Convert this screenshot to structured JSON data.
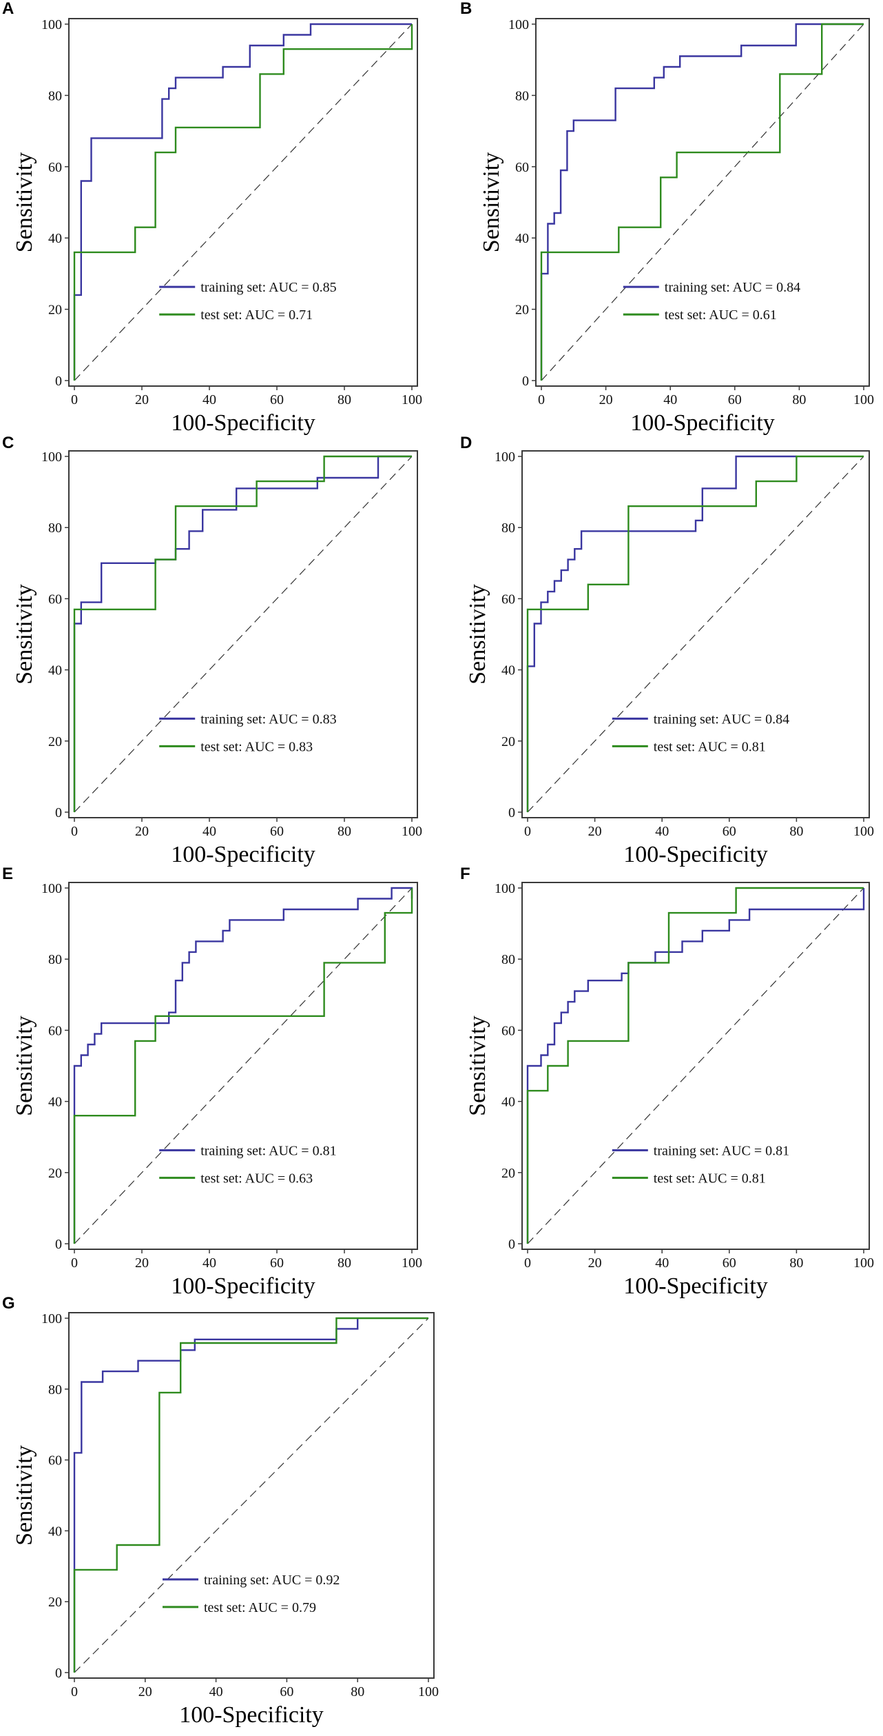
{
  "figure": {
    "axis_labels": {
      "x": "100-Specificity",
      "y": "Sensitivity"
    },
    "tick_values": [
      0,
      20,
      40,
      60,
      80,
      100
    ],
    "colors": {
      "training": "#3a36a0",
      "test": "#2e8b1e",
      "diagonal": "#333333",
      "frame": "#3a3a3a"
    }
  },
  "chart_data": [
    {
      "panel": "A",
      "type": "line",
      "xlabel": "100-Specificity",
      "ylabel": "Sensitivity",
      "xlim": [
        0,
        100
      ],
      "ylim": [
        0,
        100
      ],
      "reference_line": [
        [
          0,
          0
        ],
        [
          100,
          100
        ]
      ],
      "series": [
        {
          "name": "training set: AUC = 0.85",
          "label": "training set: AUC = 0.85",
          "x": [
            0,
            0,
            2,
            2,
            5,
            5,
            26,
            26,
            28,
            28,
            30,
            30,
            44,
            44,
            52,
            52,
            62,
            62,
            70,
            70,
            100
          ],
          "y": [
            0,
            24,
            24,
            56,
            56,
            68,
            68,
            79,
            79,
            82,
            82,
            85,
            85,
            88,
            88,
            94,
            94,
            97,
            97,
            100,
            100
          ]
        },
        {
          "name": "test set: AUC = 0.71",
          "label": "test set: AUC = 0.71",
          "x": [
            0,
            0,
            18,
            18,
            24,
            24,
            30,
            30,
            55,
            55,
            62,
            62,
            100,
            100
          ],
          "y": [
            0,
            36,
            36,
            43,
            43,
            64,
            64,
            71,
            71,
            86,
            86,
            93,
            93,
            100
          ]
        }
      ]
    },
    {
      "panel": "B",
      "type": "line",
      "xlabel": "100-Specificity",
      "ylabel": "Sensitivity",
      "xlim": [
        0,
        100
      ],
      "ylim": [
        0,
        100
      ],
      "reference_line": [
        [
          0,
          0
        ],
        [
          100,
          100
        ]
      ],
      "series": [
        {
          "name": "training set: AUC = 0.84",
          "label": "training set: AUC = 0.84",
          "x": [
            0,
            0,
            2,
            2,
            4,
            4,
            6,
            6,
            8,
            8,
            10,
            10,
            23,
            23,
            35,
            35,
            38,
            38,
            43,
            43,
            62,
            62,
            79,
            79,
            100
          ],
          "y": [
            0,
            30,
            30,
            44,
            44,
            47,
            47,
            59,
            59,
            70,
            70,
            73,
            73,
            82,
            82,
            85,
            85,
            88,
            88,
            91,
            91,
            94,
            94,
            100,
            100
          ]
        },
        {
          "name": "test set: AUC = 0.61",
          "label": "test set: AUC = 0.61",
          "x": [
            0,
            0,
            24,
            24,
            37,
            37,
            42,
            42,
            74,
            74,
            87,
            87,
            100
          ],
          "y": [
            0,
            36,
            36,
            43,
            43,
            57,
            57,
            64,
            64,
            86,
            86,
            100,
            100
          ]
        }
      ]
    },
    {
      "panel": "C",
      "type": "line",
      "xlabel": "100-Specificity",
      "ylabel": "Sensitivity",
      "xlim": [
        0,
        100
      ],
      "ylim": [
        0,
        100
      ],
      "reference_line": [
        [
          0,
          0
        ],
        [
          100,
          100
        ]
      ],
      "series": [
        {
          "name": "training set: AUC = 0.83",
          "label": "training set: AUC = 0.83",
          "x": [
            0,
            0,
            2,
            2,
            8,
            8,
            24,
            24,
            30,
            30,
            34,
            34,
            38,
            38,
            48,
            48,
            52,
            52,
            72,
            72,
            90,
            90,
            100
          ],
          "y": [
            0,
            53,
            53,
            59,
            59,
            70,
            70,
            71,
            71,
            74,
            74,
            79,
            79,
            85,
            85,
            91,
            91,
            91,
            91,
            94,
            94,
            100,
            100
          ]
        },
        {
          "name": "test set: AUC = 0.83",
          "label": "test set: AUC = 0.83",
          "x": [
            0,
            0,
            24,
            24,
            30,
            30,
            46,
            46,
            54,
            54,
            74,
            74,
            100
          ],
          "y": [
            0,
            57,
            57,
            71,
            71,
            86,
            86,
            86,
            86,
            93,
            93,
            100,
            100
          ]
        }
      ]
    },
    {
      "panel": "D",
      "type": "line",
      "xlabel": "100-Specificity",
      "ylabel": "Sensitivity",
      "xlim": [
        0,
        100
      ],
      "ylim": [
        0,
        100
      ],
      "reference_line": [
        [
          0,
          0
        ],
        [
          100,
          100
        ]
      ],
      "series": [
        {
          "name": "training set: AUC = 0.84",
          "label": "training set: AUC = 0.84",
          "x": [
            0,
            0,
            2,
            2,
            4,
            4,
            6,
            6,
            8,
            8,
            10,
            10,
            12,
            12,
            14,
            14,
            16,
            16,
            22,
            22,
            50,
            50,
            52,
            52,
            62,
            62,
            80,
            80
          ],
          "y": [
            0,
            41,
            41,
            53,
            53,
            59,
            59,
            62,
            62,
            65,
            65,
            68,
            68,
            71,
            71,
            74,
            74,
            79,
            79,
            79,
            79,
            82,
            82,
            91,
            91,
            100,
            100,
            100
          ]
        },
        {
          "name": "test set: AUC = 0.81",
          "label": "test set: AUC = 0.81",
          "x": [
            0,
            0,
            18,
            18,
            30,
            30,
            60,
            60,
            68,
            68,
            80,
            80,
            100
          ],
          "y": [
            0,
            57,
            57,
            64,
            64,
            86,
            86,
            86,
            86,
            93,
            93,
            100,
            100
          ]
        }
      ]
    },
    {
      "panel": "E",
      "type": "line",
      "xlabel": "100-Specificity",
      "ylabel": "Sensitivity",
      "xlim": [
        0,
        100
      ],
      "ylim": [
        0,
        100
      ],
      "reference_line": [
        [
          0,
          0
        ],
        [
          100,
          100
        ]
      ],
      "series": [
        {
          "name": "training set: AUC = 0.81",
          "label": "training set: AUC = 0.81",
          "x": [
            0,
            0,
            2,
            2,
            4,
            4,
            6,
            6,
            8,
            8,
            26,
            26,
            28,
            28,
            30,
            30,
            32,
            32,
            34,
            34,
            36,
            36,
            44,
            44,
            46,
            46,
            62,
            62,
            84,
            84,
            94,
            94,
            100,
            100
          ],
          "y": [
            0,
            50,
            50,
            53,
            53,
            56,
            56,
            59,
            59,
            62,
            62,
            62,
            62,
            65,
            65,
            74,
            74,
            79,
            79,
            82,
            82,
            85,
            85,
            88,
            88,
            91,
            91,
            94,
            94,
            97,
            97,
            100,
            100,
            97
          ]
        },
        {
          "name": "test set: AUC = 0.63",
          "label": "test set: AUC = 0.63",
          "x": [
            0,
            0,
            18,
            18,
            24,
            24,
            74,
            74,
            92,
            92,
            100,
            100
          ],
          "y": [
            0,
            36,
            36,
            57,
            57,
            64,
            64,
            79,
            79,
            93,
            93,
            100
          ]
        }
      ]
    },
    {
      "panel": "F",
      "type": "line",
      "xlabel": "100-Specificity",
      "ylabel": "Sensitivity",
      "xlim": [
        0,
        100
      ],
      "ylim": [
        0,
        100
      ],
      "reference_line": [
        [
          0,
          0
        ],
        [
          100,
          100
        ]
      ],
      "series": [
        {
          "name": "training set: AUC = 0.81",
          "label": "training set: AUC = 0.81",
          "x": [
            0,
            0,
            4,
            4,
            6,
            6,
            8,
            8,
            10,
            10,
            12,
            12,
            14,
            14,
            18,
            18,
            28,
            28,
            30,
            30,
            38,
            38,
            46,
            46,
            52,
            52,
            60,
            60,
            66,
            66,
            100,
            100
          ],
          "y": [
            0,
            50,
            50,
            53,
            53,
            56,
            56,
            62,
            62,
            65,
            65,
            68,
            68,
            71,
            71,
            74,
            74,
            76,
            76,
            79,
            79,
            82,
            82,
            85,
            85,
            88,
            88,
            91,
            91,
            94,
            94,
            100
          ]
        },
        {
          "name": "test set: AUC = 0.81",
          "label": "test set: AUC = 0.81",
          "x": [
            0,
            0,
            6,
            6,
            12,
            12,
            30,
            30,
            42,
            42,
            62,
            62,
            100,
            100
          ],
          "y": [
            0,
            43,
            43,
            50,
            50,
            57,
            57,
            79,
            79,
            93,
            93,
            100,
            100,
            100
          ]
        }
      ]
    },
    {
      "panel": "G",
      "type": "line",
      "xlabel": "100-Specificity",
      "ylabel": "Sensitivity",
      "xlim": [
        0,
        100
      ],
      "ylim": [
        0,
        100
      ],
      "reference_line": [
        [
          0,
          0
        ],
        [
          100,
          100
        ]
      ],
      "series": [
        {
          "name": "training set: AUC = 0.92",
          "label": "training set: AUC = 0.92",
          "x": [
            0,
            0,
            2,
            2,
            8,
            8,
            18,
            18,
            30,
            30,
            34,
            34,
            74,
            74,
            80,
            80
          ],
          "y": [
            0,
            62,
            62,
            82,
            82,
            85,
            85,
            88,
            88,
            91,
            91,
            94,
            94,
            97,
            97,
            100
          ]
        },
        {
          "name": "test set: AUC = 0.79",
          "label": "test set: AUC = 0.79",
          "x": [
            0,
            0,
            12,
            12,
            24,
            24,
            30,
            30,
            32,
            32,
            74,
            74,
            100
          ],
          "y": [
            0,
            29,
            29,
            36,
            36,
            79,
            79,
            93,
            93,
            93,
            93,
            100,
            100
          ]
        }
      ]
    }
  ]
}
